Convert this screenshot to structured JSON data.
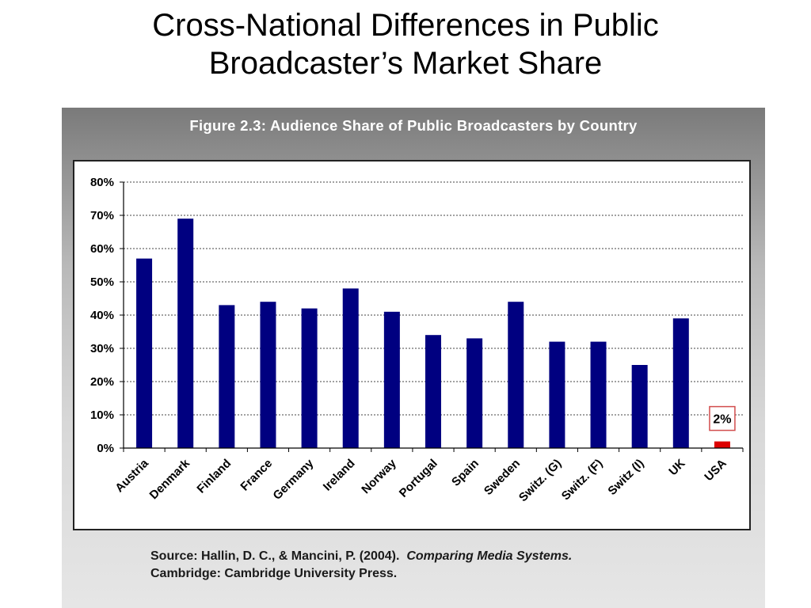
{
  "slide": {
    "title_line1": "Cross-National Differences in Public",
    "title_line2": "Broadcaster’s Market Share"
  },
  "figure": {
    "title": "Figure 2.3: Audience Share of Public Broadcasters by Country",
    "source_line1_prefix": "Source: Hallin, D. C., & Mancini, P. (2004).",
    "source_line1_book": "Comparing Media Systems.",
    "source_line2": "Cambridge: Cambridge University Press."
  },
  "colors": {
    "bar": "#000080",
    "highlight_bar": "#dd0000",
    "callout_border": "#d24d4d"
  },
  "chart_data": {
    "type": "bar",
    "title": "Figure 2.3: Audience Share of Public Broadcasters by Country",
    "xlabel": "",
    "ylabel": "",
    "categories": [
      "Austria",
      "Denmark",
      "Finland",
      "France",
      "Germany",
      "Ireland",
      "Norway",
      "Portugal",
      "Spain",
      "Sweden",
      "Switz. (G)",
      "Switz. (F)",
      "Switz (I)",
      "UK",
      "USA"
    ],
    "values": [
      57,
      69,
      43,
      44,
      42,
      48,
      41,
      34,
      33,
      44,
      32,
      32,
      25,
      39,
      2
    ],
    "ylim": [
      0,
      80
    ],
    "yticks": [
      0,
      10,
      20,
      30,
      40,
      50,
      60,
      70,
      80
    ],
    "ytick_labels": [
      "0%",
      "10%",
      "20%",
      "30%",
      "40%",
      "50%",
      "60%",
      "70%",
      "80%"
    ],
    "grid": "horizontal dotted",
    "highlight": {
      "category": "USA",
      "label": "2%"
    }
  }
}
